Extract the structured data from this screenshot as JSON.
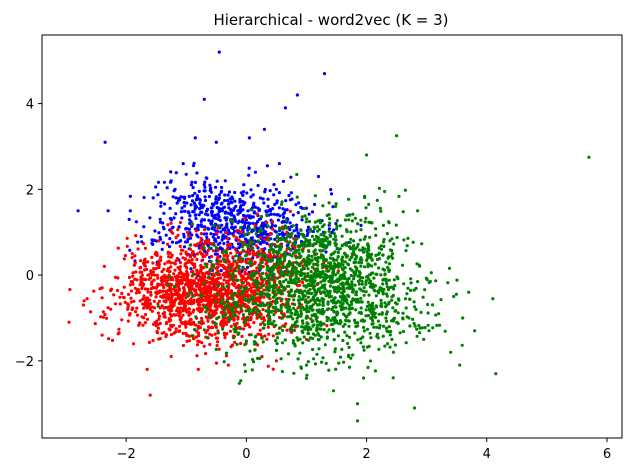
{
  "chart_data": {
    "type": "scatter",
    "title": "Hierarchical - word2vec (K = 3)",
    "xlabel": "",
    "ylabel": "",
    "xlim": [
      -3.4,
      6.25
    ],
    "ylim": [
      -3.8,
      5.6
    ],
    "xticks": [
      -2,
      0,
      2,
      4,
      6
    ],
    "yticks": [
      -2,
      0,
      2,
      4
    ],
    "xtick_labels": [
      "−2",
      "0",
      "2",
      "4",
      "6"
    ],
    "ytick_labels": [
      "−2",
      "0",
      "2",
      "4"
    ],
    "grid": false,
    "legend": "none",
    "series": [
      {
        "color": "#0000ff",
        "clusters": [
          {
            "n": 620,
            "cx": -0.1,
            "cy": 1.1,
            "sx": 0.65,
            "sy": 0.45,
            "seed": 11
          },
          {
            "n": 120,
            "cx": -0.6,
            "cy": 1.7,
            "sx": 0.5,
            "sy": 0.35,
            "seed": 12
          }
        ],
        "points": [
          [
            -2.8,
            1.5
          ],
          [
            -2.35,
            3.1
          ],
          [
            -1.0,
            2.35
          ],
          [
            -1.25,
            2.2
          ],
          [
            -0.45,
            5.2
          ],
          [
            -0.7,
            4.1
          ],
          [
            -1.55,
            1.8
          ],
          [
            -2.3,
            1.5
          ],
          [
            -0.5,
            3.1
          ],
          [
            0.05,
            3.2
          ],
          [
            0.65,
            3.9
          ],
          [
            0.85,
            4.2
          ],
          [
            1.3,
            4.7
          ],
          [
            0.55,
            2.6
          ],
          [
            0.35,
            2.55
          ],
          [
            -0.85,
            3.2
          ],
          [
            -1.05,
            2.6
          ],
          [
            -0.35,
            2.2
          ],
          [
            0.5,
            2.0
          ],
          [
            -1.95,
            1.3
          ],
          [
            -1.75,
            0.9
          ],
          [
            0.15,
            2.4
          ],
          [
            0.3,
            3.4
          ],
          [
            1.2,
            2.3
          ]
        ]
      },
      {
        "color": "#ff0000",
        "clusters": [
          {
            "n": 1200,
            "cx": -0.55,
            "cy": -0.5,
            "sx": 0.7,
            "sy": 0.55,
            "seed": 21
          },
          {
            "n": 250,
            "cx": -1.2,
            "cy": -0.2,
            "sx": 0.45,
            "sy": 0.5,
            "seed": 22
          },
          {
            "n": 200,
            "cx": 0.2,
            "cy": 0.35,
            "sx": 0.45,
            "sy": 0.35,
            "seed": 23
          }
        ],
        "points": [
          [
            -2.95,
            -1.1
          ],
          [
            -2.65,
            -0.55
          ],
          [
            -2.7,
            -0.6
          ],
          [
            -2.4,
            -1.4
          ],
          [
            -1.6,
            -2.8
          ],
          [
            -1.65,
            -2.2
          ],
          [
            -2.4,
            -0.3
          ],
          [
            -1.9,
            0.5
          ],
          [
            -0.8,
            -2.2
          ],
          [
            -0.3,
            -2.1
          ],
          [
            0.5,
            -2.0
          ],
          [
            -1.25,
            -1.9
          ]
        ]
      },
      {
        "color": "#008000",
        "clusters": [
          {
            "n": 1100,
            "cx": 0.95,
            "cy": -0.35,
            "sx": 0.8,
            "sy": 0.75,
            "seed": 31
          },
          {
            "n": 350,
            "cx": 1.4,
            "cy": 0.4,
            "sx": 0.55,
            "sy": 0.6,
            "seed": 32
          },
          {
            "n": 200,
            "cx": 2.2,
            "cy": -0.7,
            "sx": 0.6,
            "sy": 0.55,
            "seed": 33
          }
        ],
        "points": [
          [
            5.7,
            2.75
          ],
          [
            2.5,
            3.25
          ],
          [
            2.0,
            2.8
          ],
          [
            2.3,
            1.95
          ],
          [
            2.85,
            1.5
          ],
          [
            4.1,
            -0.55
          ],
          [
            4.15,
            -2.3
          ],
          [
            3.8,
            -1.3
          ],
          [
            3.7,
            -0.4
          ],
          [
            3.45,
            -0.5
          ],
          [
            3.4,
            -1.8
          ],
          [
            3.55,
            -2.1
          ],
          [
            2.8,
            -3.1
          ],
          [
            1.85,
            -3.0
          ],
          [
            1.85,
            -3.4
          ],
          [
            1.95,
            -2.4
          ],
          [
            1.45,
            -2.7
          ],
          [
            1.7,
            -1.9
          ],
          [
            2.35,
            -1.6
          ],
          [
            2.95,
            -1.5
          ],
          [
            0.6,
            -2.25
          ],
          [
            1.0,
            -2.1
          ],
          [
            3.2,
            -0.9
          ],
          [
            3.6,
            -1.0
          ]
        ]
      }
    ]
  }
}
